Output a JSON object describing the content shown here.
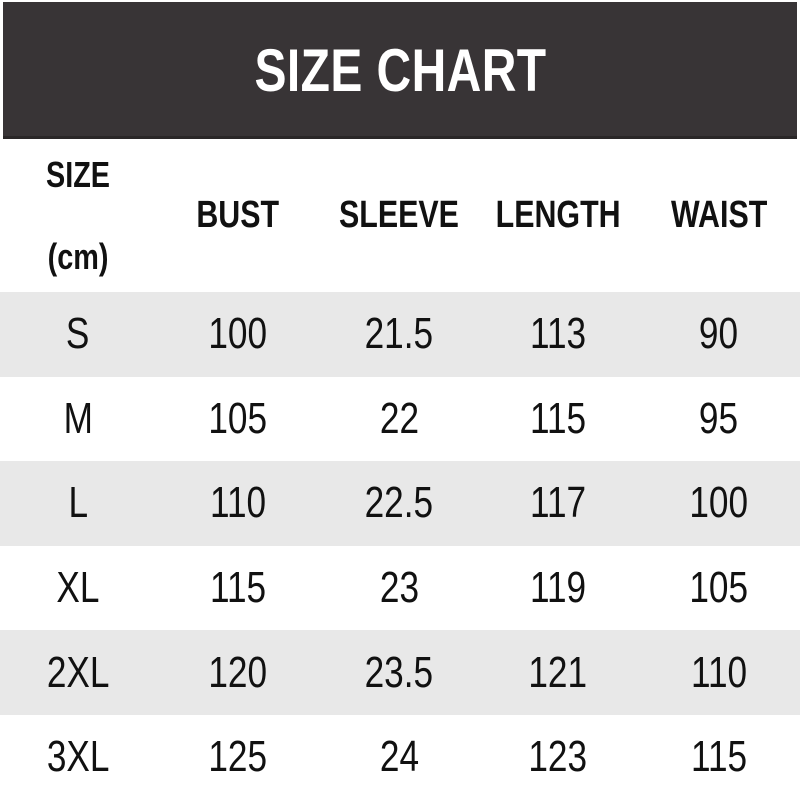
{
  "banner": {
    "title": "SIZE CHART"
  },
  "header": {
    "size_line1": "SIZE",
    "size_line2": "(cm)",
    "col_bust": "BUST",
    "col_sleeve": "SLEEVE",
    "col_length": "LENGTH",
    "col_waist": "WAIST"
  },
  "colors": {
    "banner_bg": "#383436",
    "banner_text": "#ffffff",
    "stripe": "#e8e8e8",
    "text": "#111111"
  },
  "chart_data": {
    "type": "table",
    "title": "SIZE CHART",
    "unit": "cm",
    "columns": [
      "SIZE (cm)",
      "BUST",
      "SLEEVE",
      "LENGTH",
      "WAIST"
    ],
    "rows": [
      [
        "S",
        100,
        21.5,
        113,
        90
      ],
      [
        "M",
        105,
        22,
        115,
        95
      ],
      [
        "L",
        110,
        22.5,
        117,
        100
      ],
      [
        "XL",
        115,
        23,
        119,
        105
      ],
      [
        "2XL",
        120,
        23.5,
        121,
        110
      ],
      [
        "3XL",
        125,
        24,
        123,
        115
      ]
    ],
    "layout": {
      "zebra_striped_rows": [
        "S",
        "L",
        "2XL"
      ],
      "grid": false
    }
  }
}
